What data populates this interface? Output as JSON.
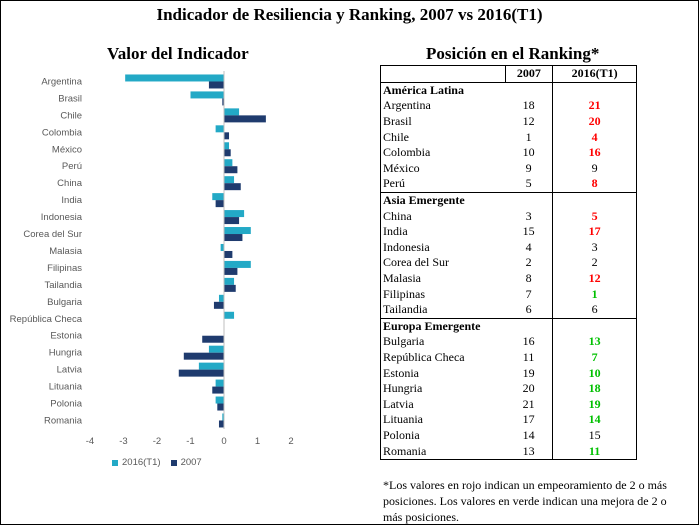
{
  "title": "Indicador de Resiliencia y Ranking, 2007 vs 2016(T1)",
  "chart_title": "Valor del Indicador",
  "table_title": "Posición en el Ranking*",
  "colors": {
    "series_2016": "#23a9c6",
    "series_2007": "#1f3b6e",
    "worse": "#ff0000",
    "better": "#00c000"
  },
  "chart_data": {
    "type": "bar",
    "orientation": "horizontal",
    "categories": [
      "Argentina",
      "Brasil",
      "Chile",
      "Colombia",
      "México",
      "Perú",
      "China",
      "India",
      "Indonesia",
      "Corea del Sur",
      "Malasia",
      "Filipinas",
      "Tailandia",
      "Bulgaria",
      "República Checa",
      "Estonia",
      "Hungria",
      "Latvia",
      "Lituania",
      "Polonia",
      "Romania"
    ],
    "series": [
      {
        "name": "2016(T1)",
        "values": [
          -2.95,
          -1.0,
          0.45,
          -0.25,
          0.15,
          0.25,
          0.3,
          -0.35,
          0.6,
          0.8,
          -0.1,
          0.8,
          0.3,
          -0.15,
          0.3,
          0.0,
          -0.45,
          -0.75,
          -0.25,
          -0.25,
          -0.05
        ]
      },
      {
        "name": "2007",
        "values": [
          -0.45,
          -0.05,
          1.25,
          0.15,
          0.2,
          0.4,
          0.5,
          -0.25,
          0.45,
          0.55,
          0.25,
          0.4,
          0.35,
          -0.3,
          0.0,
          -0.65,
          -1.2,
          -1.35,
          -0.35,
          -0.2,
          -0.15
        ]
      }
    ],
    "xlim": [
      -4,
      2
    ],
    "xticks": [
      "-4",
      "-3",
      "-2",
      "-1",
      "0",
      "1",
      "2"
    ],
    "legend": "bottom",
    "grid": false
  },
  "ranking": {
    "headers": [
      "",
      "2007",
      "2016(T1)"
    ],
    "groups": [
      {
        "region": "América Latina",
        "rows": [
          {
            "country": "Argentina",
            "r2007": "18",
            "r2016": "21",
            "status": "worse"
          },
          {
            "country": "Brasil",
            "r2007": "12",
            "r2016": "20",
            "status": "worse"
          },
          {
            "country": "Chile",
            "r2007": "1",
            "r2016": "4",
            "status": "worse"
          },
          {
            "country": "Colombia",
            "r2007": "10",
            "r2016": "16",
            "status": "worse"
          },
          {
            "country": "México",
            "r2007": "9",
            "r2016": "9",
            "status": "same"
          },
          {
            "country": "Perú",
            "r2007": "5",
            "r2016": "8",
            "status": "worse"
          }
        ]
      },
      {
        "region": "Asia Emergente",
        "rows": [
          {
            "country": "China",
            "r2007": "3",
            "r2016": "5",
            "status": "worse"
          },
          {
            "country": "India",
            "r2007": "15",
            "r2016": "17",
            "status": "worse"
          },
          {
            "country": "Indonesia",
            "r2007": "4",
            "r2016": "3",
            "status": "same"
          },
          {
            "country": "Corea del Sur",
            "r2007": "2",
            "r2016": "2",
            "status": "same"
          },
          {
            "country": "Malasia",
            "r2007": "8",
            "r2016": "12",
            "status": "worse"
          },
          {
            "country": "Filipinas",
            "r2007": "7",
            "r2016": "1",
            "status": "better"
          },
          {
            "country": "Tailandia",
            "r2007": "6",
            "r2016": "6",
            "status": "same"
          }
        ]
      },
      {
        "region": "Europa Emergente",
        "rows": [
          {
            "country": "Bulgaria",
            "r2007": "16",
            "r2016": "13",
            "status": "better"
          },
          {
            "country": "República Checa",
            "r2007": "11",
            "r2016": "7",
            "status": "better"
          },
          {
            "country": "Estonia",
            "r2007": "19",
            "r2016": "10",
            "status": "better"
          },
          {
            "country": "Hungria",
            "r2007": "20",
            "r2016": "18",
            "status": "better"
          },
          {
            "country": "Latvia",
            "r2007": "21",
            "r2016": "19",
            "status": "better"
          },
          {
            "country": "Lituania",
            "r2007": "17",
            "r2016": "14",
            "status": "better"
          },
          {
            "country": "Polonia",
            "r2007": "14",
            "r2016": "15",
            "status": "same"
          },
          {
            "country": "Romania",
            "r2007": "13",
            "r2016": "11",
            "status": "better"
          }
        ]
      }
    ]
  },
  "footnote": "*Los valores en rojo indican un empeoramiento de 2 o más posiciones. Los valores en verde indican una mejora de 2 o más posiciones."
}
